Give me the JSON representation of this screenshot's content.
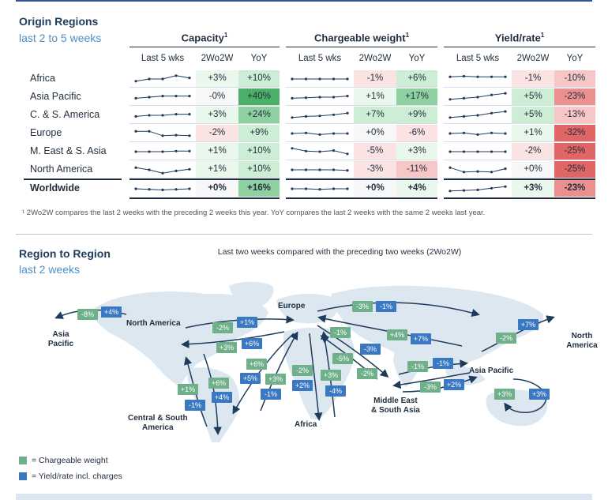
{
  "section1": {
    "title": "Origin Regions",
    "subtitle": "last 2 to 5 weeks"
  },
  "groups": [
    {
      "label": "Capacity",
      "sup": "1"
    },
    {
      "label": "Chargeable weight",
      "sup": "1"
    },
    {
      "label": "Yield/rate",
      "sup": "1"
    }
  ],
  "col_heads": [
    "Last 5 wks",
    "2Wo2W",
    "YoY"
  ],
  "rows": [
    {
      "label": "Africa",
      "cap": [
        "+3%",
        "+10%"
      ],
      "cw": [
        "-1%",
        "+6%"
      ],
      "yr": [
        "-1%",
        "-10%"
      ]
    },
    {
      "label": "Asia Pacific",
      "cap": [
        "-0%",
        "+40%"
      ],
      "cw": [
        "+1%",
        "+17%"
      ],
      "yr": [
        "+5%",
        "-23%"
      ]
    },
    {
      "label": "C. & S. America",
      "cap": [
        "+3%",
        "+24%"
      ],
      "cw": [
        "+7%",
        "+9%"
      ],
      "yr": [
        "+5%",
        "-13%"
      ]
    },
    {
      "label": "Europe",
      "cap": [
        "-2%",
        "+9%"
      ],
      "cw": [
        "+0%",
        "-6%"
      ],
      "yr": [
        "+1%",
        "-32%"
      ]
    },
    {
      "label": "M. East & S. Asia",
      "cap": [
        "+1%",
        "+10%"
      ],
      "cw": [
        "-5%",
        "+3%"
      ],
      "yr": [
        "-2%",
        "-25%"
      ]
    },
    {
      "label": "North America",
      "cap": [
        "+1%",
        "+10%"
      ],
      "cw": [
        "-3%",
        "-11%"
      ],
      "yr": [
        "+0%",
        "-25%"
      ]
    },
    {
      "label": "Worldwide",
      "cap": [
        "+0%",
        "+16%"
      ],
      "cw": [
        "+0%",
        "+4%"
      ],
      "yr": [
        "+3%",
        "-23%"
      ]
    }
  ],
  "footnote": "¹ 2Wo2W compares the last 2 weeks with the preceding 2 weeks this year. YoY compares the last 2 weeks with the same 2 weeks last year.",
  "section2": {
    "title": "Region to Region",
    "subtitle": "last 2 weeks",
    "note": "Last two weeks compared with the preceding two weeks (2Wo2W)"
  },
  "map_labels": {
    "asia_pacific_left": "Asia\nPacific",
    "north_america": "North America",
    "europe": "Europe",
    "asia_pacific": "Asia Pacific",
    "north_america_right": "North\nAmerica",
    "africa": "Africa",
    "mesa": "Middle East\n& South Asia",
    "csa": "Central & South\nAmerica"
  },
  "legend": {
    "green": "= Chargeable weight",
    "blue": "= Yield/rate incl. charges"
  },
  "colors": {
    "green_badge": "#6fb08b",
    "blue_badge": "#3a78c2",
    "pos_strong": "#62b97a",
    "neg_strong": "#e06666"
  },
  "chart_data": [
    {
      "type": "table",
      "title": "Origin Regions",
      "columns": [
        "Capacity 2Wo2W",
        "Capacity YoY",
        "Chargeable weight 2Wo2W",
        "Chargeable weight YoY",
        "Yield/rate 2Wo2W",
        "Yield/rate YoY"
      ],
      "rows": [
        [
          "Africa",
          3,
          10,
          -1,
          6,
          -1,
          -10
        ],
        [
          "Asia Pacific",
          0,
          40,
          1,
          17,
          5,
          -23
        ],
        [
          "C. & S. America",
          3,
          24,
          7,
          9,
          5,
          -13
        ],
        [
          "Europe",
          -2,
          9,
          0,
          -6,
          1,
          -32
        ],
        [
          "M. East & S. Asia",
          1,
          10,
          -5,
          3,
          -2,
          -25
        ],
        [
          "North America",
          1,
          10,
          -3,
          -11,
          0,
          -25
        ],
        [
          "Worldwide",
          0,
          16,
          0,
          4,
          3,
          -23
        ]
      ]
    },
    {
      "type": "line",
      "title": "Last 5 wks sparklines",
      "series": [
        {
          "name": "Capacity",
          "rows": [
            [
              0.3,
              0.5,
              0.5,
              0.8,
              0.6
            ],
            [
              0.4,
              0.5,
              0.6,
              0.6,
              0.6
            ],
            [
              0.4,
              0.5,
              0.5,
              0.6,
              0.6
            ],
            [
              0.7,
              0.7,
              0.3,
              0.35,
              0.3
            ],
            [
              0.5,
              0.5,
              0.5,
              0.55,
              0.55
            ],
            [
              0.7,
              0.5,
              0.2,
              0.4,
              0.55
            ],
            [
              0.5,
              0.45,
              0.4,
              0.45,
              0.5
            ]
          ]
        },
        {
          "name": "Chargeable weight",
          "rows": [
            [
              0.5,
              0.5,
              0.5,
              0.5,
              0.5
            ],
            [
              0.4,
              0.45,
              0.5,
              0.5,
              0.6
            ],
            [
              0.3,
              0.4,
              0.45,
              0.55,
              0.7
            ],
            [
              0.5,
              0.55,
              0.4,
              0.5,
              0.5
            ],
            [
              0.8,
              0.55,
              0.5,
              0.6,
              0.3
            ],
            [
              0.5,
              0.5,
              0.5,
              0.5,
              0.45
            ],
            [
              0.5,
              0.5,
              0.45,
              0.5,
              0.5
            ]
          ]
        },
        {
          "name": "Yield/rate",
          "rows": [
            [
              0.7,
              0.75,
              0.7,
              0.7,
              0.7
            ],
            [
              0.3,
              0.4,
              0.5,
              0.7,
              0.85
            ],
            [
              0.3,
              0.4,
              0.5,
              0.7,
              0.85
            ],
            [
              0.5,
              0.55,
              0.4,
              0.55,
              0.5
            ],
            [
              0.5,
              0.5,
              0.5,
              0.5,
              0.5
            ],
            [
              0.7,
              0.3,
              0.35,
              0.3,
              0.6
            ],
            [
              0.3,
              0.35,
              0.4,
              0.55,
              0.7
            ]
          ]
        }
      ]
    },
    {
      "type": "diagram",
      "title": "Region to Region",
      "flows": [
        {
          "route": "North America - Asia Pacific",
          "chargeable_weight": "-8%",
          "yield_rate": "+4%"
        },
        {
          "route": "North America - Europe",
          "chargeable_weight": "-2%",
          "yield_rate": "+1%"
        },
        {
          "route": "Europe - North America",
          "chargeable_weight": "+3%",
          "yield_rate": "+6%"
        },
        {
          "route": "Europe - Asia Pacific",
          "chargeable_weight": "-3%",
          "yield_rate": "-1%"
        },
        {
          "route": "Asia Pacific - Europe",
          "chargeable_weight": "+4%",
          "yield_rate": "+7%"
        },
        {
          "route": "Asia Pacific - North America",
          "chargeable_weight": "-2%",
          "yield_rate": "+7%"
        },
        {
          "route": "Europe - C&S America",
          "chargeable_weight": "+6%",
          "yield_rate": "+5%"
        },
        {
          "route": "C&S America - Europe",
          "chargeable_weight": "+3%",
          "yield_rate": "-1%"
        },
        {
          "route": "North America - C&S America",
          "chargeable_weight": "+6%",
          "yield_rate": "+4%"
        },
        {
          "route": "C&S America - North America",
          "chargeable_weight": "+1%",
          "yield_rate": "-1%"
        },
        {
          "route": "Europe - Africa",
          "chargeable_weight": "-2%",
          "yield_rate": "+2%"
        },
        {
          "route": "Africa - Europe",
          "chargeable_weight": "+3%",
          "yield_rate": "-4%"
        },
        {
          "route": "Europe - ME&SA",
          "chargeable_weight": "-1%",
          "yield_rate": "-3%"
        },
        {
          "route": "ME&SA - Europe",
          "chargeable_weight": "-5%",
          "yield_rate": ""
        },
        {
          "route": "ME&SA - Asia Pacific",
          "chargeable_weight": "-2%",
          "yield_rate": ""
        },
        {
          "route": "Asia Pacific - ME&SA",
          "chargeable_weight": "-1%",
          "yield_rate": "-1%"
        },
        {
          "route": "ME&SA - Asia Pacific (2)",
          "chargeable_weight": "-3%",
          "yield_rate": "+2%"
        },
        {
          "route": "Intra Asia Pacific",
          "chargeable_weight": "+3%",
          "yield_rate": "+3%"
        }
      ]
    }
  ]
}
